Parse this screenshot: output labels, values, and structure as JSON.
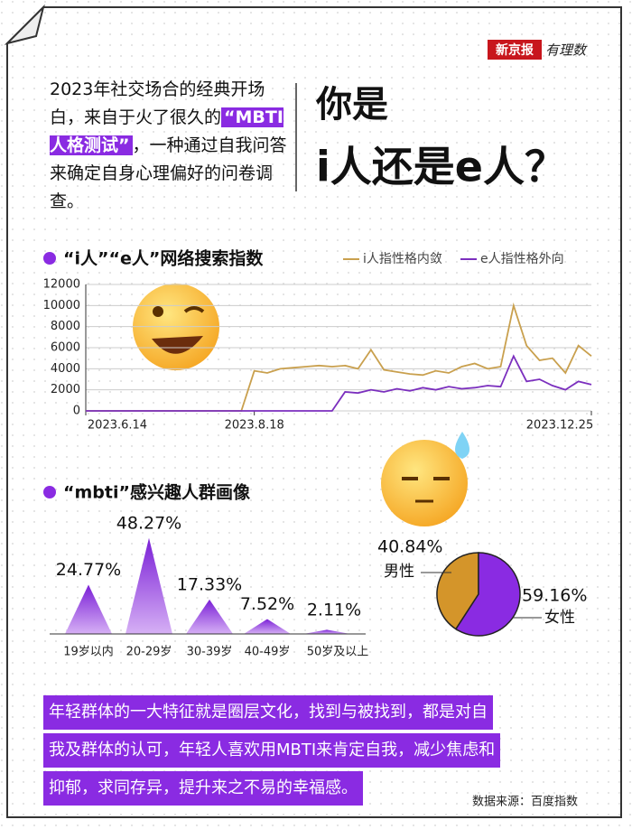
{
  "logo": {
    "brand": "新京报",
    "sub": "有理数"
  },
  "intro": [
    "2023年社交场合的经典开场白，来自于火了很久的",
    "“MBTI人格测试”",
    "，一种通过自我问答来确定自身心理偏好的问卷调查。"
  ],
  "headline": [
    "你是",
    "i人还是e人？"
  ],
  "chart_data": [
    {
      "type": "line",
      "title": "“i人”“e人”网络搜索指数",
      "categories": [
        "2023.6.14",
        null,
        null,
        null,
        null,
        null,
        null,
        null,
        null,
        null,
        null,
        null,
        null,
        "2023.8.18",
        null,
        null,
        null,
        null,
        null,
        null,
        null,
        null,
        null,
        null,
        null,
        null,
        null,
        null,
        null,
        null,
        null,
        null,
        null,
        null,
        null,
        null,
        null,
        null,
        null,
        "2023.12.25"
      ],
      "series": [
        {
          "name": "i人指性格内敛",
          "color": "#c9a04e",
          "values": [
            0,
            0,
            0,
            0,
            0,
            0,
            0,
            0,
            0,
            0,
            0,
            0,
            0,
            3800,
            3600,
            4000,
            4100,
            4200,
            4300,
            4200,
            4300,
            4000,
            5800,
            3900,
            3700,
            3500,
            3400,
            3800,
            3600,
            4200,
            4500,
            4000,
            4200,
            10000,
            6200,
            4800,
            5000,
            3600,
            6200,
            5200
          ]
        },
        {
          "name": "e人指性格外向",
          "color": "#7b2fbe",
          "values": [
            0,
            0,
            0,
            0,
            0,
            0,
            0,
            0,
            0,
            0,
            0,
            0,
            0,
            0,
            0,
            0,
            0,
            0,
            0,
            0,
            1800,
            1700,
            2000,
            1800,
            2100,
            1900,
            2200,
            2000,
            2300,
            2100,
            2200,
            2400,
            2300,
            5200,
            2800,
            3000,
            2400,
            2000,
            2800,
            2500
          ]
        }
      ],
      "ylim": [
        0,
        12000
      ],
      "yticks": [
        0,
        2000,
        4000,
        6000,
        8000,
        10000,
        12000
      ],
      "grid": true
    },
    {
      "type": "bar",
      "title": "“mbti”感兴趣人群画像",
      "categories": [
        "19岁以内",
        "20-29岁",
        "30-39岁",
        "40-49岁",
        "50岁及以上"
      ],
      "values": [
        24.77,
        48.27,
        17.33,
        7.52,
        2.11
      ],
      "value_labels": [
        "24.77%",
        "48.27%",
        "17.33%",
        "7.52%",
        "2.11%"
      ],
      "color": "#8a2be2"
    },
    {
      "type": "pie",
      "categories": [
        "男性",
        "女性"
      ],
      "values": [
        40.84,
        59.16
      ],
      "value_labels": [
        "40.84%",
        "59.16%"
      ],
      "colors": [
        "#d4952a",
        "#8a2be2"
      ]
    }
  ],
  "conclusion": [
    "年轻群体的一大特征就是圈层文化，找到与被找到，都是对自",
    "我及群体的认可，年轻人喜欢用MBTI来肯定自我，减少焦虑和",
    "抑郁，求同存异，提升来之不易的幸福感。"
  ],
  "source": "数据来源：百度指数"
}
